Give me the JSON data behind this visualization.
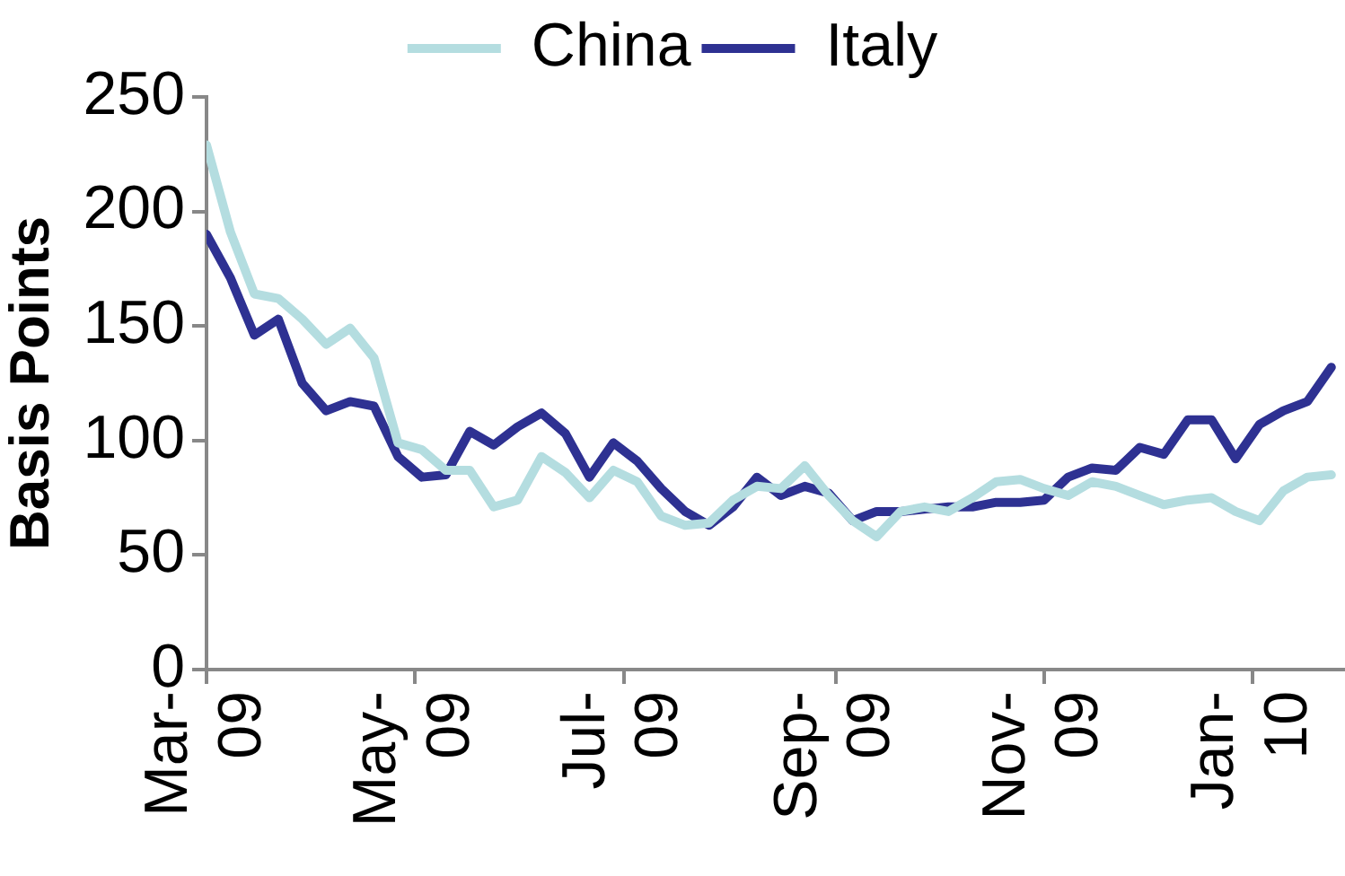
{
  "chart_data": {
    "type": "line",
    "x": [
      "2009-03-01",
      "2009-03-08",
      "2009-03-15",
      "2009-03-22",
      "2009-03-29",
      "2009-04-05",
      "2009-04-12",
      "2009-04-19",
      "2009-04-26",
      "2009-05-03",
      "2009-05-10",
      "2009-05-17",
      "2009-05-24",
      "2009-05-31",
      "2009-06-07",
      "2009-06-14",
      "2009-06-21",
      "2009-06-28",
      "2009-07-05",
      "2009-07-12",
      "2009-07-19",
      "2009-07-26",
      "2009-08-02",
      "2009-08-09",
      "2009-08-16",
      "2009-08-23",
      "2009-08-30",
      "2009-09-06",
      "2009-09-13",
      "2009-09-20",
      "2009-09-27",
      "2009-10-04",
      "2009-10-11",
      "2009-10-18",
      "2009-10-25",
      "2009-11-01",
      "2009-11-08",
      "2009-11-15",
      "2009-11-22",
      "2009-11-29",
      "2009-12-06",
      "2009-12-13",
      "2009-12-20",
      "2009-12-27",
      "2010-01-03",
      "2010-01-10",
      "2010-01-17",
      "2010-01-24"
    ],
    "series": [
      {
        "name": "China",
        "color": "#b4dde0",
        "values": [
          229,
          191,
          164,
          162,
          153,
          142,
          149,
          136,
          99,
          96,
          87,
          87,
          71,
          74,
          93,
          86,
          75,
          87,
          82,
          67,
          63,
          64,
          74,
          80,
          79,
          89,
          76,
          65,
          58,
          69,
          71,
          69,
          75,
          82,
          83,
          79,
          76,
          82,
          80,
          76,
          72,
          74,
          75,
          69,
          65,
          78,
          84,
          85
        ]
      },
      {
        "name": "Italy",
        "color": "#2e3192",
        "values": [
          190,
          171,
          146,
          153,
          125,
          113,
          117,
          115,
          93,
          84,
          85,
          104,
          98,
          106,
          112,
          103,
          84,
          99,
          91,
          79,
          69,
          63,
          71,
          84,
          76,
          80,
          77,
          65,
          69,
          69,
          70,
          71,
          71,
          73,
          73,
          74,
          84,
          88,
          87,
          97,
          94,
          109,
          109,
          92,
          107,
          113,
          117,
          132
        ]
      }
    ],
    "ylabel": "Basis Points",
    "xlim": [
      "2009-03-01",
      "2010-01-28"
    ],
    "xticks": [
      {
        "value": "2009-03-01",
        "label": "Mar-09"
      },
      {
        "value": "2009-05-01",
        "label": "May-09"
      },
      {
        "value": "2009-07-01",
        "label": "Jul-09"
      },
      {
        "value": "2009-09-01",
        "label": "Sep-09"
      },
      {
        "value": "2009-11-01",
        "label": "Nov-09"
      },
      {
        "value": "2010-01-01",
        "label": "Jan-10"
      }
    ],
    "ylim": [
      0,
      250
    ],
    "yticks": [
      0,
      50,
      100,
      150,
      200,
      250
    ],
    "legend": "top"
  }
}
